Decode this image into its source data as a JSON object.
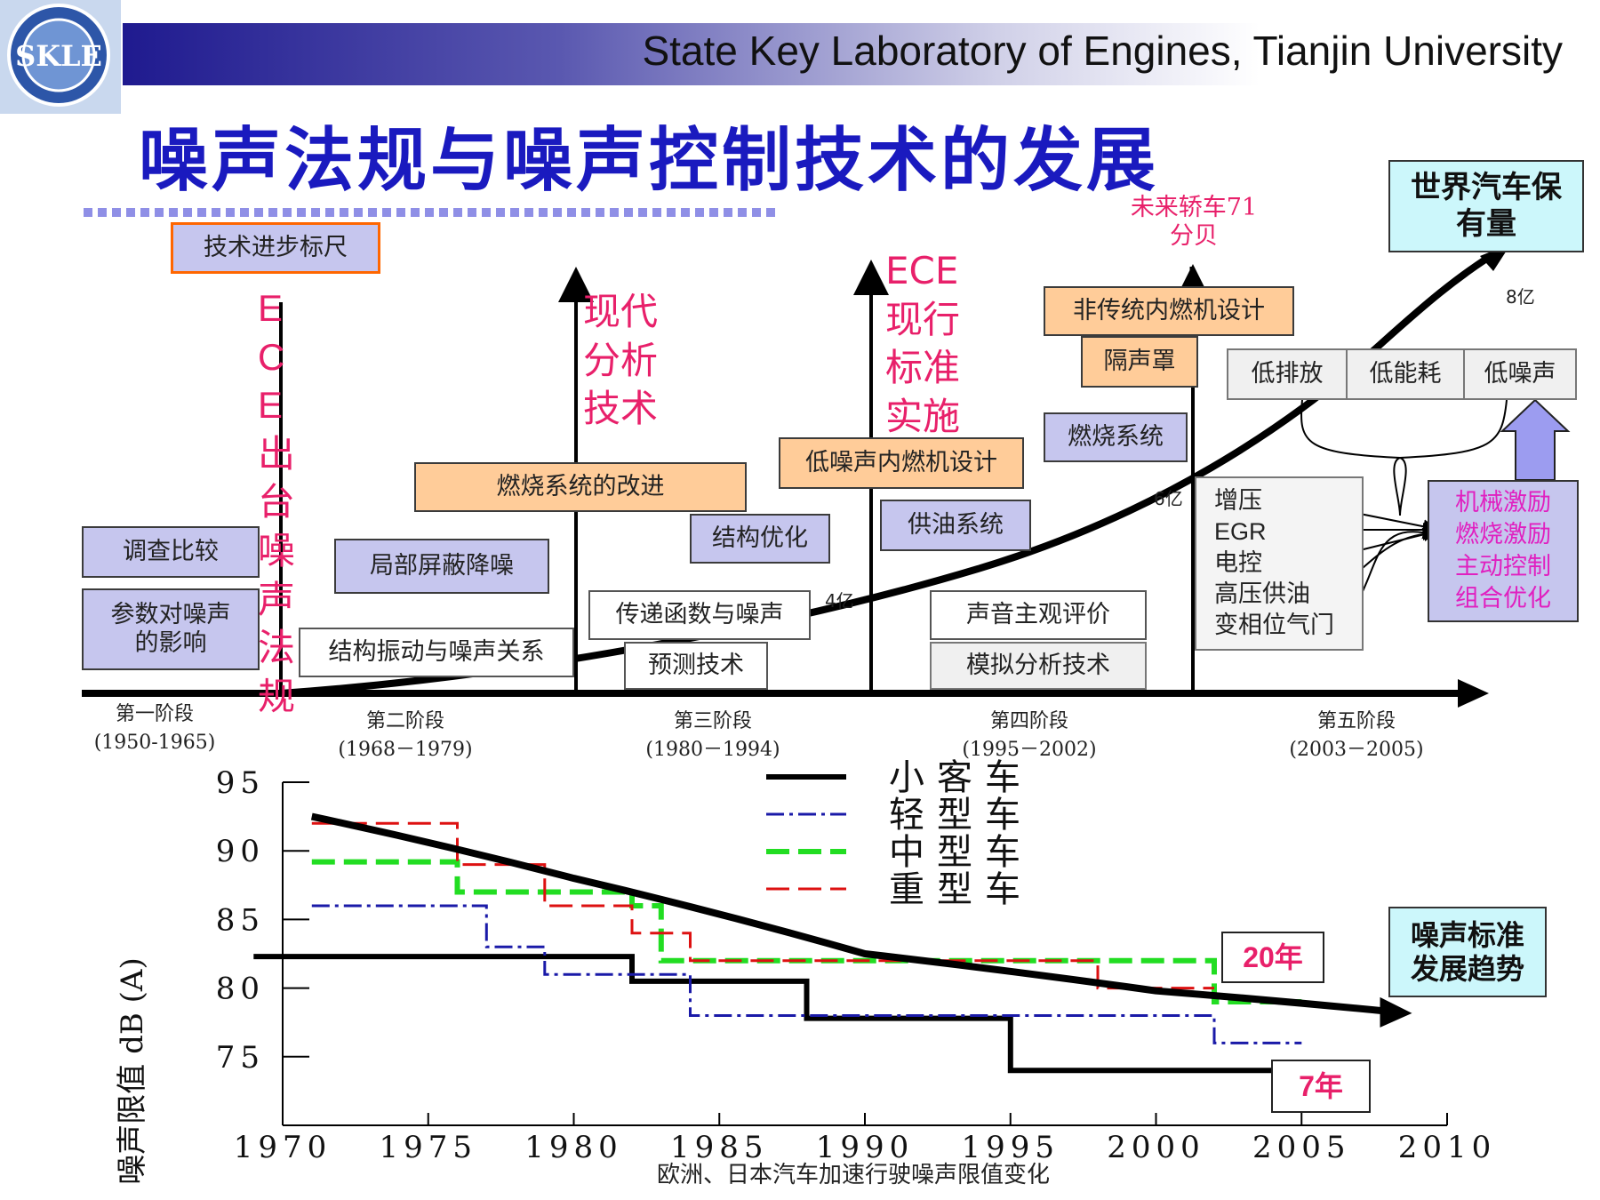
{
  "header": {
    "lab": "State Key Laboratory of Engines, Tianjin   University",
    "logo_text": "SKLE"
  },
  "title": "噪声法规与噪声控制技术的发展",
  "diagram": {
    "tech_scale": "技术进步标尺",
    "vertical_labels": {
      "ece_issued": "ECE出台噪声法规",
      "modern_analysis": "现代分析技术",
      "ece_current": "ECE现行标准实施"
    },
    "future_car": "未来轿车71分贝",
    "world_cars": "世界汽车保有量",
    "counts": {
      "c4": "4亿",
      "c6": "6亿",
      "c8": "8亿"
    },
    "boxes": {
      "survey": "调查比较",
      "param": "参数对噪声的影响",
      "struct_vib": "结构振动与噪声关系",
      "local_shield": "局部屏蔽降噪",
      "combustion_improve": "燃烧系统的改进",
      "transfer": "传递函数与噪声",
      "predict": "预测技术",
      "struct_opt": "结构优化",
      "low_noise_design": "低噪声内燃机设计",
      "fuel_system": "供油系统",
      "subjective": "声音主观评价",
      "simulation": "模拟分析技术",
      "combustion_system": "燃烧系统",
      "unconventional": "非传统内燃机设计",
      "enclosure": "隔声罩",
      "low_emission": "低排放",
      "low_energy": "低能耗",
      "low_noise": "低噪声",
      "tech_list": [
        "增压",
        "EGR",
        "电控",
        "高压供油",
        "变相位气门"
      ],
      "result_list": [
        "机械激励",
        "燃烧激励",
        "主动控制",
        "组合优化"
      ]
    },
    "stages": [
      {
        "name": "第一阶段",
        "years": "(1950-1965)"
      },
      {
        "name": "第二阶段",
        "years": "(1968－1979)"
      },
      {
        "name": "第三阶段",
        "years": "(1980－1994)"
      },
      {
        "name": "第四阶段",
        "years": "(1995－2002)"
      },
      {
        "name": "第五阶段",
        "years": "(2003－2005)"
      }
    ]
  },
  "chart_data": {
    "type": "line",
    "xlabel": "欧洲、日本汽车加速行驶噪声限值变化",
    "ylabel": "噪声限值 dB (A)",
    "xlim": [
      1970,
      2010
    ],
    "ylim": [
      70,
      95
    ],
    "x_ticks": [
      1970,
      1975,
      1980,
      1985,
      1990,
      1995,
      2000,
      2005,
      2010
    ],
    "y_ticks": [
      75,
      80,
      85,
      90,
      95
    ],
    "legend": [
      "小客车",
      "轻型车",
      "中型车",
      "重型车"
    ],
    "series": [
      {
        "name": "小客车",
        "color": "#000000",
        "style": "solid",
        "points": [
          [
            1969,
            82.3
          ],
          [
            1982,
            82.3
          ],
          [
            1982,
            80.5
          ],
          [
            1988,
            80.5
          ],
          [
            1988,
            77.8
          ],
          [
            1995,
            77.8
          ],
          [
            1995,
            74
          ],
          [
            2004,
            74
          ]
        ]
      },
      {
        "name": "轻型车",
        "color": "#1a1aa8",
        "style": "dashdot",
        "points": [
          [
            1971,
            86
          ],
          [
            1977,
            86
          ],
          [
            1977,
            83
          ],
          [
            1979,
            83
          ],
          [
            1979,
            81
          ],
          [
            1984,
            81
          ],
          [
            1984,
            78
          ],
          [
            2002,
            78
          ],
          [
            2002,
            76
          ],
          [
            2005,
            76
          ]
        ]
      },
      {
        "name": "中型车",
        "color": "#22dd22",
        "style": "dashed",
        "points": [
          [
            1971,
            89.2
          ],
          [
            1976,
            89.2
          ],
          [
            1976,
            87
          ],
          [
            1982,
            87
          ],
          [
            1982,
            86
          ],
          [
            1983,
            86
          ],
          [
            1983,
            82
          ],
          [
            2002,
            82
          ],
          [
            2002,
            79
          ],
          [
            2005,
            79
          ]
        ]
      },
      {
        "name": "重型车",
        "color": "#dd1111",
        "style": "dashed",
        "points": [
          [
            1971,
            92
          ],
          [
            1976,
            92
          ],
          [
            1976,
            89
          ],
          [
            1979,
            89
          ],
          [
            1979,
            86
          ],
          [
            1982,
            86
          ],
          [
            1982,
            84
          ],
          [
            1984,
            84
          ],
          [
            1984,
            82
          ],
          [
            1998,
            82
          ],
          [
            1998,
            80
          ],
          [
            2002,
            80
          ]
        ]
      }
    ],
    "trend": {
      "points": [
        [
          1971,
          92.5
        ],
        [
          1980,
          88
        ],
        [
          1990,
          82.5
        ],
        [
          2000,
          79.8
        ],
        [
          2008,
          78.3
        ]
      ]
    },
    "annotations": {
      "twenty_years": "20年",
      "seven_years": "7年",
      "trend_box": "噪声标准发展趋势"
    }
  }
}
